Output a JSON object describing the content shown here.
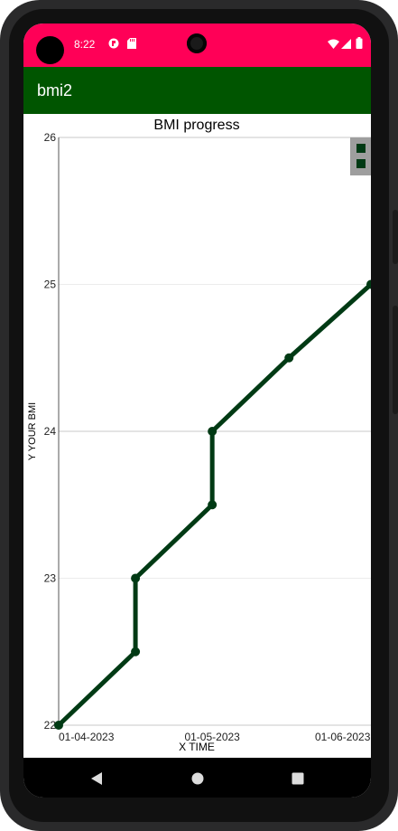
{
  "status_bar": {
    "time": "8:22",
    "icons": [
      "notification-icon",
      "sd-card-icon",
      "wifi-icon",
      "signal-icon",
      "battery-icon"
    ]
  },
  "app_bar": {
    "title": "bmi2",
    "color": "#005500"
  },
  "chart_data": {
    "type": "line",
    "title": "BMI progress",
    "xlabel": "X TIME",
    "ylabel": "Y YOUR BMI",
    "x_tick_labels": [
      "01-04-2023",
      "01-05-2023",
      "01-06-2023"
    ],
    "y_tick_labels": [
      "22",
      "23",
      "24",
      "25",
      "26"
    ],
    "ylim": [
      22,
      26
    ],
    "xlim": [
      "01-04-2023",
      "01-06-2023"
    ],
    "grid": true,
    "series": [
      {
        "color": "#003a14",
        "points": [
          {
            "x": "01-04-2023",
            "y": 22.0
          },
          {
            "x": "16-04-2023",
            "y": 22.5
          },
          {
            "x": "16-04-2023",
            "y": 23.0
          },
          {
            "x": "01-05-2023",
            "y": 23.5
          },
          {
            "x": "01-05-2023",
            "y": 24.0
          },
          {
            "x": "16-05-2023",
            "y": 24.5
          },
          {
            "x": "01-06-2023",
            "y": 25.0
          }
        ]
      }
    ]
  },
  "navigation_bar": {
    "buttons": [
      "back-icon",
      "home-icon",
      "recents-icon"
    ]
  }
}
